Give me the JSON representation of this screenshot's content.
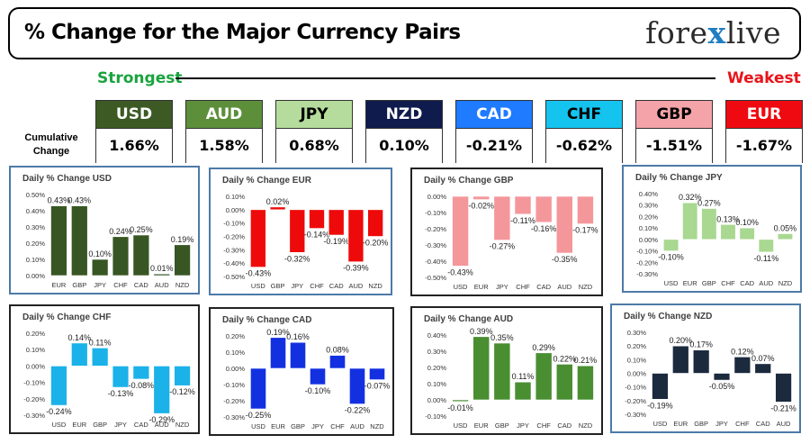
{
  "header": {
    "title": "% Change for the Major Currency Pairs",
    "logo_left": "fore",
    "logo_x": "x",
    "logo_right": "live"
  },
  "scale": {
    "strongest": "Strongest",
    "weakest": "Weakest"
  },
  "cumulative_label": "Cumulative Change",
  "tiles": [
    {
      "name": "USD",
      "value": "1.66%",
      "bg": "#3d5a24",
      "fg": "#ffffff"
    },
    {
      "name": "AUD",
      "value": "1.58%",
      "bg": "#5d8f3b",
      "fg": "#ffffff"
    },
    {
      "name": "JPY",
      "value": "0.68%",
      "bg": "#b5dc9c",
      "fg": "#000000"
    },
    {
      "name": "NZD",
      "value": "0.10%",
      "bg": "#0f1b4d",
      "fg": "#ffffff"
    },
    {
      "name": "CAD",
      "value": "-0.21%",
      "bg": "#1f7bff",
      "fg": "#ffffff"
    },
    {
      "name": "CHF",
      "value": "-0.62%",
      "bg": "#14c4ef",
      "fg": "#000000"
    },
    {
      "name": "GBP",
      "value": "-1.51%",
      "bg": "#f4a3a8",
      "fg": "#000000"
    },
    {
      "name": "EUR",
      "value": "-1.67%",
      "bg": "#ee0a10",
      "fg": "#ffffff"
    }
  ],
  "chart_data": [
    {
      "type": "bar",
      "title": "Daily % Change USD",
      "categories": [
        "EUR",
        "GBP",
        "JPY",
        "CHF",
        "CAD",
        "AUD",
        "NZD"
      ],
      "values": [
        0.43,
        0.43,
        0.1,
        0.24,
        0.25,
        0.01,
        0.19
      ],
      "labels": [
        "0.43%",
        "0.43%",
        "0.10%",
        "0.24%",
        "0.25%",
        "0.01%",
        "0.19%"
      ],
      "ylim": [
        0,
        0.5
      ],
      "ticks": [
        0,
        0.1,
        0.2,
        0.3,
        0.4,
        0.5
      ],
      "tick_labels": [
        "0.00%",
        "0.10%",
        "0.20%",
        "0.30%",
        "0.40%",
        "0.50%"
      ],
      "color": "#375623",
      "border": "#4d7aa8"
    },
    {
      "type": "bar",
      "title": "Daily % Change EUR",
      "categories": [
        "USD",
        "GBP",
        "JPY",
        "CHF",
        "CAD",
        "AUD",
        "NZD"
      ],
      "values": [
        -0.43,
        0.02,
        -0.32,
        -0.14,
        -0.19,
        -0.39,
        -0.2
      ],
      "labels": [
        "-0.43%",
        "0.02%",
        "-0.32%",
        "-0.14%",
        "-0.19%",
        "-0.39%",
        "-0.20%"
      ],
      "ylim": [
        -0.5,
        0.1
      ],
      "ticks": [
        0.1,
        0,
        -0.1,
        -0.2,
        -0.3,
        -0.4,
        -0.5
      ],
      "tick_labels": [
        "0.10%",
        "0.00%",
        "-0.10%",
        "-0.20%",
        "-0.30%",
        "-0.40%",
        "-0.50%"
      ],
      "color": "#ee0a0a",
      "border": "#4d7aa8"
    },
    {
      "type": "bar",
      "title": "Daily % Change GBP",
      "categories": [
        "USD",
        "EUR",
        "JPY",
        "CHF",
        "CAD",
        "AUD",
        "NZD"
      ],
      "values": [
        -0.43,
        -0.02,
        -0.27,
        -0.11,
        -0.16,
        -0.35,
        -0.17
      ],
      "labels": [
        "-0.43%",
        "-0.02%",
        "-0.27%",
        "-0.11%",
        "-0.16%",
        "-0.35%",
        "-0.17%"
      ],
      "ylim": [
        -0.5,
        0
      ],
      "ticks": [
        0,
        -0.1,
        -0.2,
        -0.3,
        -0.4,
        -0.5
      ],
      "tick_labels": [
        "0.00%",
        "-0.10%",
        "-0.20%",
        "-0.30%",
        "-0.40%",
        "-0.50%"
      ],
      "color": "#f4979b",
      "border": "#222222"
    },
    {
      "type": "bar",
      "title": "Daily % Change JPY",
      "categories": [
        "USD",
        "EUR",
        "GBP",
        "CHF",
        "CAD",
        "AUD",
        "NZD"
      ],
      "values": [
        -0.1,
        0.32,
        0.27,
        0.13,
        0.1,
        -0.11,
        0.05
      ],
      "labels": [
        "-0.10%",
        "0.32%",
        "0.27%",
        "0.13%",
        "0.10%",
        "-0.11%",
        "0.05%"
      ],
      "ylim": [
        -0.3,
        0.4
      ],
      "ticks": [
        0.4,
        0.3,
        0.2,
        0.1,
        0,
        -0.1,
        -0.2,
        -0.3
      ],
      "tick_labels": [
        "0.40%",
        "0.30%",
        "0.20%",
        "0.10%",
        "0.00%",
        "-0.10%",
        "-0.20%",
        "-0.30%"
      ],
      "color": "#a9d890",
      "border": "#4d7aa8"
    },
    {
      "type": "bar",
      "title": "Daily % Change CHF",
      "categories": [
        "USD",
        "EUR",
        "GBP",
        "JPY",
        "CAD",
        "AUD",
        "NZD"
      ],
      "values": [
        -0.24,
        0.14,
        0.11,
        -0.13,
        -0.08,
        -0.29,
        -0.12
      ],
      "labels": [
        "-0.24%",
        "0.14%",
        "0.11%",
        "-0.13%",
        "-0.08%",
        "-0.29%",
        "-0.12%"
      ],
      "ylim": [
        -0.3,
        0.2
      ],
      "ticks": [
        0.2,
        0.1,
        0,
        -0.1,
        -0.2,
        -0.3
      ],
      "tick_labels": [
        "0.20%",
        "0.10%",
        "0.00%",
        "-0.10%",
        "-0.20%",
        "-0.30%"
      ],
      "color": "#1ab2e8",
      "border": "#222222"
    },
    {
      "type": "bar",
      "title": "Daily % Change CAD",
      "categories": [
        "USD",
        "EUR",
        "GBP",
        "JPY",
        "CHF",
        "AUD",
        "NZD"
      ],
      "values": [
        -0.25,
        0.19,
        0.16,
        -0.1,
        0.08,
        -0.22,
        -0.07
      ],
      "labels": [
        "-0.25%",
        "0.19%",
        "0.16%",
        "-0.10%",
        "0.08%",
        "-0.22%",
        "-0.07%"
      ],
      "ylim": [
        -0.3,
        0.2
      ],
      "ticks": [
        0.2,
        0.1,
        0,
        -0.1,
        -0.2,
        -0.3
      ],
      "tick_labels": [
        "0.20%",
        "0.10%",
        "0.00%",
        "-0.10%",
        "-0.20%",
        "-0.30%"
      ],
      "color": "#1330e0",
      "border": "#222222"
    },
    {
      "type": "bar",
      "title": "Daily % Change AUD",
      "categories": [
        "USD",
        "EUR",
        "GBP",
        "JPY",
        "CHF",
        "CAD",
        "NZD"
      ],
      "values": [
        -0.01,
        0.39,
        0.35,
        0.11,
        0.29,
        0.22,
        0.21
      ],
      "labels": [
        "-0.01%",
        "0.39%",
        "0.35%",
        "0.11%",
        "0.29%",
        "0.22%",
        "0.21%"
      ],
      "ylim": [
        -0.1,
        0.4
      ],
      "ticks": [
        0.4,
        0.3,
        0.2,
        0.1,
        0,
        -0.1
      ],
      "tick_labels": [
        "0.40%",
        "0.30%",
        "0.20%",
        "0.10%",
        "0.00%",
        "-0.10%"
      ],
      "color": "#4a8e32",
      "border": "#222222"
    },
    {
      "type": "bar",
      "title": "Daily % Change NZD",
      "categories": [
        "USD",
        "EUR",
        "GBP",
        "JPY",
        "CHF",
        "CAD",
        "AUD"
      ],
      "values": [
        -0.19,
        0.2,
        0.17,
        -0.05,
        0.12,
        0.07,
        -0.21
      ],
      "labels": [
        "-0.19%",
        "0.20%",
        "0.17%",
        "-0.05%",
        "0.12%",
        "0.07%",
        "-0.21%"
      ],
      "ylim": [
        -0.3,
        0.3
      ],
      "ticks": [
        0.3,
        0.2,
        0.1,
        0,
        -0.1,
        -0.2,
        -0.3
      ],
      "tick_labels": [
        "0.30%",
        "0.20%",
        "0.10%",
        "0.00%",
        "-0.10%",
        "-0.20%",
        "-0.30%"
      ],
      "color": "#1c2a3e",
      "border": "#4d7aa8"
    }
  ]
}
